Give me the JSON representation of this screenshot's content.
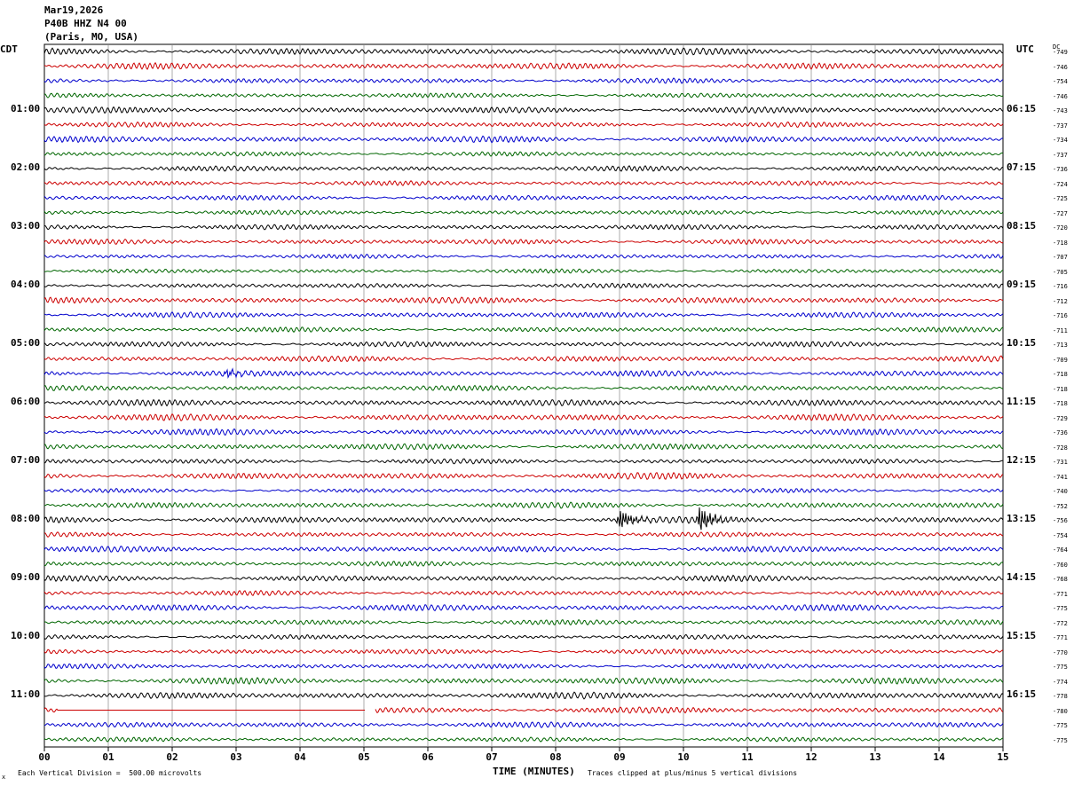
{
  "header": {
    "date": "Mar19,2026",
    "station": "P40B HHZ N4 00",
    "location": "(Paris, MO, USA)"
  },
  "left_tz": "CDT",
  "right_tz": "UTC",
  "dc_label": "DC",
  "footer": {
    "scale": "Each Vertical Division =  500.00 microvolts",
    "clip": "Traces clipped at plus/minus 5 vertical divisions",
    "corner": "x"
  },
  "colors": {
    "cycle": [
      "#000000",
      "#cc0000",
      "#0000cc",
      "#006600"
    ],
    "grid": "#888888"
  },
  "chart_data": {
    "type": "line",
    "xlabel": "TIME (MINUTES)",
    "xlim": [
      0,
      15
    ],
    "x_ticks": [
      "00",
      "01",
      "02",
      "03",
      "04",
      "05",
      "06",
      "07",
      "08",
      "09",
      "10",
      "11",
      "12",
      "13",
      "14",
      "15"
    ],
    "left_hour_labels": [
      {
        "row": 4,
        "text": "01:00"
      },
      {
        "row": 8,
        "text": "02:00"
      },
      {
        "row": 12,
        "text": "03:00"
      },
      {
        "row": 16,
        "text": "04:00"
      },
      {
        "row": 20,
        "text": "05:00"
      },
      {
        "row": 24,
        "text": "06:00"
      },
      {
        "row": 28,
        "text": "07:00"
      },
      {
        "row": 32,
        "text": "08:00"
      },
      {
        "row": 36,
        "text": "09:00"
      },
      {
        "row": 40,
        "text": "10:00"
      },
      {
        "row": 44,
        "text": "11:00"
      }
    ],
    "right_hour_labels": [
      {
        "row": 4,
        "text": "06:15"
      },
      {
        "row": 8,
        "text": "07:15"
      },
      {
        "row": 12,
        "text": "08:15"
      },
      {
        "row": 16,
        "text": "09:15"
      },
      {
        "row": 20,
        "text": "10:15"
      },
      {
        "row": 24,
        "text": "11:15"
      },
      {
        "row": 28,
        "text": "12:15"
      },
      {
        "row": 32,
        "text": "13:15"
      },
      {
        "row": 36,
        "text": "14:15"
      },
      {
        "row": 40,
        "text": "15:15"
      },
      {
        "row": 44,
        "text": "16:15"
      }
    ],
    "dc_offsets": [
      "-749",
      "-746",
      "-754",
      "-746",
      "-743",
      "-737",
      "-734",
      "-737",
      "-736",
      "-724",
      "-725",
      "-727",
      "-720",
      "-718",
      "-707",
      "-705",
      "-716",
      "-712",
      "-716",
      "-711",
      "-713",
      "-709",
      "-718",
      "-718",
      "-718",
      "-729",
      "-736",
      "-728",
      "-731",
      "-741",
      "-740",
      "-752",
      "-756",
      "-754",
      "-764",
      "-760",
      "-768",
      "-771",
      "-775",
      "-772",
      "-771",
      "-770",
      "-775",
      "-774",
      "-778",
      "-780",
      "-775",
      "-775"
    ],
    "events": [
      {
        "row": 32,
        "minute": 9.0,
        "amplitude": 2.2
      },
      {
        "row": 32,
        "minute": 10.25,
        "amplitude": 2.8
      },
      {
        "row": 22,
        "minute": 2.85,
        "amplitude": 0.8
      }
    ],
    "gap": {
      "row": 45,
      "start_minute": 0.2,
      "end_minute": 5.1
    },
    "grid": true
  }
}
